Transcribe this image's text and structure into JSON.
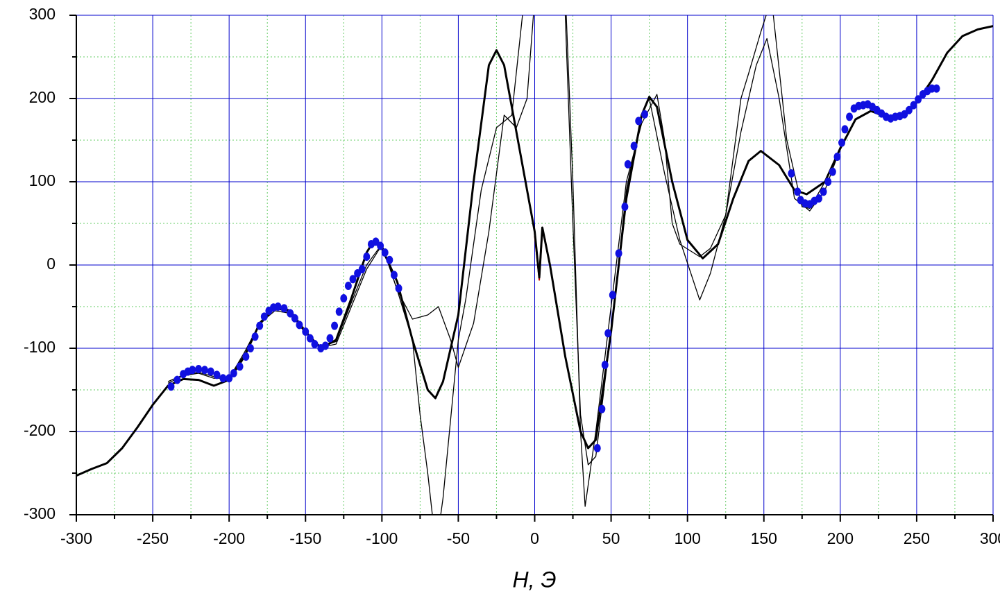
{
  "chart_data": {
    "type": "line",
    "x_label": "H, Э",
    "xlim": [
      -300,
      300
    ],
    "ylim": [
      -300,
      300
    ],
    "xticks": [
      -300,
      -250,
      -200,
      -150,
      -100,
      -50,
      0,
      50,
      100,
      150,
      200,
      250,
      300
    ],
    "yticks": [
      -300,
      -200,
      -100,
      0,
      100,
      200,
      300
    ],
    "xminorticks": [
      -275,
      -225,
      -175,
      -125,
      -75,
      -25,
      25,
      75,
      125,
      175,
      225,
      275
    ],
    "yminorticks": [
      -250,
      -150,
      -50,
      50,
      150,
      250
    ],
    "grid": true,
    "grid_color": "#0000cc",
    "minor_grid_color": "#66cc66",
    "series": [
      {
        "kind": "line",
        "color": "#000000",
        "width": 1.3,
        "x": [
          -240,
          -230,
          -220,
          -210,
          -200,
          -190,
          -180,
          -170,
          -160,
          -150,
          -140,
          -130,
          -120,
          -110,
          -100,
          -90,
          -80,
          -70,
          -63,
          -55,
          -50,
          -40,
          -30,
          -20,
          -12,
          -5,
          0,
          5,
          20,
          25,
          30,
          33,
          40,
          50,
          60,
          70,
          80,
          85,
          90,
          95,
          108,
          115,
          125,
          135,
          145,
          152,
          160,
          170,
          180,
          190,
          200
        ],
        "values": [
          -142,
          -133,
          -130,
          -136,
          -136,
          -105,
          -70,
          -55,
          -58,
          -82,
          -98,
          -92,
          -45,
          0,
          25,
          -30,
          -65,
          -60,
          -50,
          -90,
          -123,
          -70,
          40,
          180,
          165,
          200,
          320,
          350,
          330,
          100,
          -200,
          -290,
          -200,
          -50,
          100,
          170,
          205,
          150,
          50,
          25,
          10,
          20,
          60,
          160,
          240,
          272,
          200,
          80,
          65,
          90,
          140
        ]
      },
      {
        "kind": "line",
        "color": "#000000",
        "width": 1.3,
        "x": [
          -240,
          -230,
          -220,
          -210,
          -200,
          -190,
          -180,
          -170,
          -160,
          -150,
          -140,
          -130,
          -120,
          -110,
          -100,
          -90,
          -80,
          -75,
          -70,
          -67,
          -63,
          -60,
          -50,
          -45,
          -35,
          -25,
          -15,
          -8,
          -3,
          15,
          20,
          25,
          30,
          35,
          40,
          50,
          60,
          70,
          75,
          85,
          95,
          108,
          115,
          125,
          135,
          140,
          148,
          155,
          165,
          175,
          180,
          190,
          200
        ],
        "values": [
          -140,
          -132,
          -129,
          -134,
          -135,
          -108,
          -72,
          -52,
          -57,
          -80,
          -99,
          -95,
          -50,
          -5,
          24,
          -30,
          -90,
          -180,
          -250,
          -300,
          -320,
          -280,
          -90,
          -40,
          90,
          165,
          180,
          300,
          360,
          360,
          300,
          50,
          -180,
          -240,
          -230,
          -80,
          90,
          180,
          200,
          110,
          30,
          -42,
          -10,
          60,
          200,
          230,
          280,
          320,
          150,
          70,
          68,
          100,
          142
        ]
      },
      {
        "kind": "line",
        "color": "#cc0000",
        "width": 2,
        "x": [
          0,
          3,
          5,
          7
        ],
        "values": [
          35,
          -18,
          40,
          30
        ]
      },
      {
        "kind": "line",
        "color": "#000000",
        "width": 3,
        "x": [
          -300,
          -290,
          -280,
          -270,
          -260,
          -250,
          -240,
          -230,
          -220,
          -210,
          -200,
          -190,
          -180,
          -170,
          -160,
          -150,
          -140,
          -130,
          -120,
          -110,
          -105,
          -100,
          -90,
          -80,
          -70,
          -65,
          -60,
          -50,
          -40,
          -30,
          -25,
          -20,
          -10,
          0,
          3,
          5,
          10,
          20,
          30,
          35,
          40,
          50,
          60,
          70,
          75,
          80,
          90,
          100,
          110,
          120,
          130,
          140,
          148,
          160,
          170,
          178,
          190,
          200,
          210,
          220,
          230,
          240,
          250,
          260,
          270,
          280,
          290,
          300
        ],
        "values": [
          -253,
          -245,
          -238,
          -220,
          -195,
          -168,
          -145,
          -137,
          -138,
          -145,
          -138,
          -110,
          -70,
          -50,
          -55,
          -80,
          -100,
          -90,
          -40,
          15,
          30,
          20,
          -20,
          -90,
          -150,
          -160,
          -140,
          -60,
          100,
          240,
          258,
          240,
          140,
          40,
          -15,
          45,
          0,
          -110,
          -200,
          -220,
          -210,
          -80,
          80,
          180,
          202,
          190,
          100,
          30,
          8,
          25,
          80,
          125,
          137,
          120,
          90,
          85,
          100,
          140,
          175,
          185,
          178,
          178,
          195,
          222,
          255,
          275,
          283,
          287
        ]
      },
      {
        "kind": "scatter",
        "color": "#1010e0",
        "x": [
          -238,
          -234,
          -230,
          -227,
          -224,
          -220,
          -216,
          -212,
          -208,
          -204,
          -200,
          -197,
          -193,
          -189,
          -186,
          -183,
          -180,
          -177,
          -174,
          -171,
          -168,
          -164,
          -160,
          -157,
          -154,
          -150,
          -147,
          -144,
          -140,
          -137,
          -134,
          -131,
          -128,
          -125,
          -122,
          -119,
          -116,
          -113,
          -110,
          -107,
          -104,
          -101,
          -98,
          -95,
          -92,
          -89,
          41,
          44,
          46,
          48,
          51,
          55,
          59,
          61,
          65,
          68,
          72,
          168,
          172,
          174,
          177,
          180,
          183,
          186,
          189,
          192,
          195,
          198,
          201,
          203,
          206,
          209,
          212,
          215,
          218,
          221,
          224,
          227,
          230,
          233,
          236,
          239,
          242,
          245,
          248,
          251,
          254,
          257,
          260,
          263
        ],
        "values": [
          -146,
          -138,
          -131,
          -128,
          -126,
          -125,
          -126,
          -128,
          -132,
          -136,
          -136,
          -130,
          -122,
          -110,
          -100,
          -86,
          -73,
          -62,
          -55,
          -51,
          -50,
          -52,
          -58,
          -64,
          -72,
          -80,
          -88,
          -95,
          -100,
          -97,
          -88,
          -73,
          -56,
          -40,
          -25,
          -17,
          -10,
          -5,
          10,
          25,
          28,
          23,
          15,
          6,
          -12,
          -28,
          -220,
          -173,
          -120,
          -82,
          -36,
          14,
          70,
          121,
          143,
          173,
          181,
          110,
          88,
          78,
          74,
          73,
          77,
          80,
          88,
          100,
          112,
          130,
          147,
          163,
          178,
          188,
          191,
          192,
          193,
          190,
          186,
          182,
          178,
          176,
          178,
          179,
          181,
          186,
          192,
          199,
          205,
          209,
          212,
          212
        ]
      }
    ]
  }
}
